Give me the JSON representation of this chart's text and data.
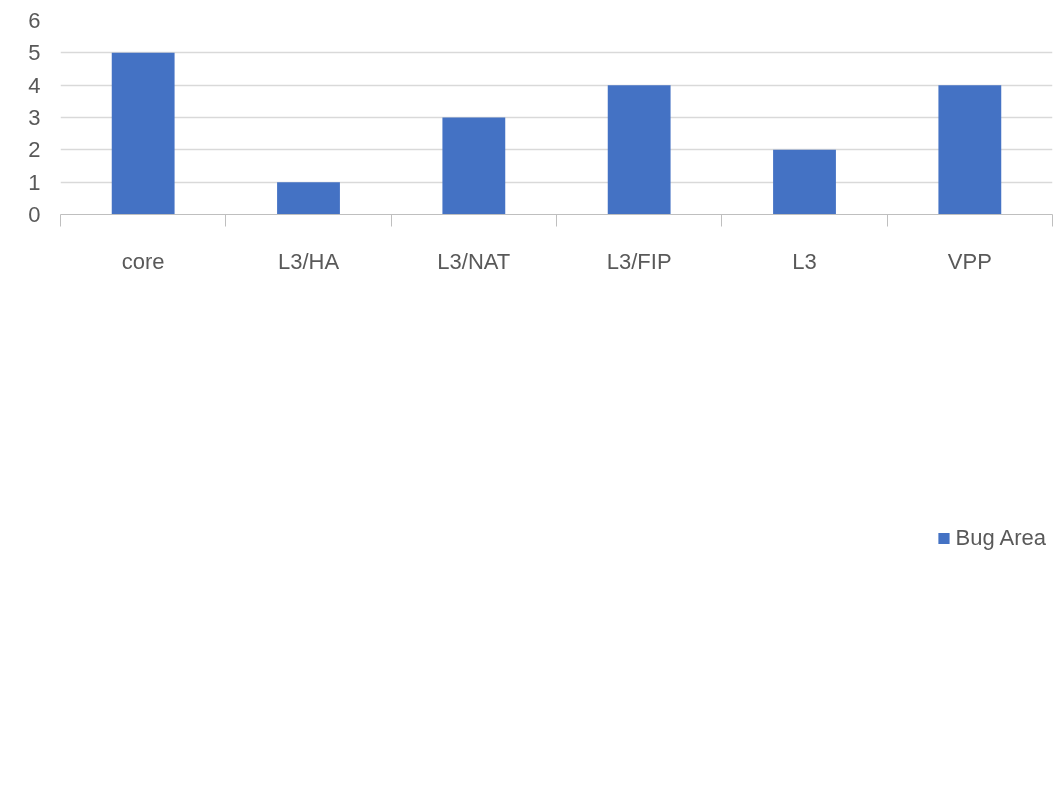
{
  "chart_data": {
    "type": "bar",
    "categories": [
      "core",
      "L3/HA",
      "L3/NAT",
      "L3/FIP",
      "L3",
      "VPP"
    ],
    "series": [
      {
        "name": "Bug Area",
        "color": "#4472c4",
        "values": [
          5,
          1,
          3,
          4,
          2,
          4
        ]
      }
    ],
    "ylim": [
      0,
      6
    ],
    "yticks": [
      0,
      1,
      2,
      3,
      4,
      5,
      6
    ],
    "grid": "y",
    "legend": "bottom"
  }
}
